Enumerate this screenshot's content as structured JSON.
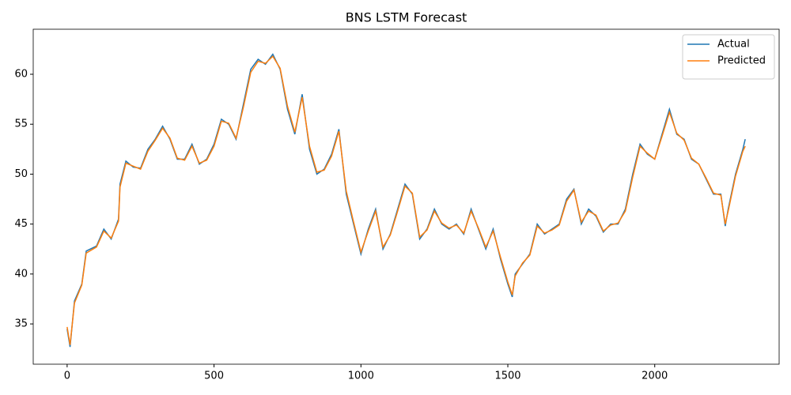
{
  "chart_data": {
    "type": "line",
    "title": "BNS LSTM Forecast",
    "x": [
      0,
      10,
      25,
      50,
      65,
      100,
      125,
      150,
      175,
      180,
      200,
      225,
      250,
      275,
      300,
      325,
      350,
      375,
      400,
      425,
      450,
      475,
      500,
      525,
      550,
      575,
      600,
      625,
      650,
      675,
      700,
      725,
      750,
      775,
      800,
      825,
      850,
      875,
      900,
      925,
      950,
      975,
      1000,
      1025,
      1050,
      1075,
      1100,
      1125,
      1150,
      1175,
      1200,
      1225,
      1250,
      1275,
      1300,
      1325,
      1350,
      1375,
      1400,
      1425,
      1450,
      1475,
      1500,
      1515,
      1525,
      1550,
      1575,
      1600,
      1625,
      1650,
      1675,
      1700,
      1725,
      1750,
      1775,
      1800,
      1825,
      1850,
      1875,
      1900,
      1925,
      1950,
      1975,
      2000,
      2025,
      2050,
      2075,
      2100,
      2125,
      2150,
      2175,
      2200,
      2225,
      2240,
      2250,
      2275,
      2300,
      2308
    ],
    "series": [
      {
        "name": "Actual",
        "color": "#1f77b4",
        "values": [
          34.5,
          32.7,
          37.3,
          39,
          42.3,
          42.8,
          44.5,
          43.5,
          45.5,
          49,
          51.3,
          50.7,
          50.6,
          52.5,
          53.5,
          54.8,
          53.5,
          51.5,
          51.5,
          53,
          51,
          51.5,
          53,
          55.5,
          55,
          53.5,
          57,
          60.5,
          61.5,
          61,
          62,
          60.5,
          56.5,
          54,
          58,
          52.5,
          50,
          50.5,
          52,
          54.5,
          48,
          45,
          42,
          44.5,
          46.5,
          42.5,
          44,
          46.5,
          49,
          48,
          43.5,
          44.5,
          46.5,
          45,
          44.5,
          45,
          44,
          46.5,
          44.5,
          42.5,
          44.5,
          41.5,
          39,
          37.7,
          40,
          41,
          42,
          45,
          44,
          44.5,
          45,
          47.5,
          48.5,
          45,
          46.5,
          45.8,
          44.2,
          45,
          45,
          46.5,
          50,
          53,
          52,
          51.5,
          54,
          56.5,
          54,
          53.5,
          51.5,
          51,
          49.5,
          48,
          48,
          44.8,
          46.5,
          50,
          52.5,
          53.5
        ]
      },
      {
        "name": "Predicted",
        "color": "#ff7f0e",
        "values": [
          34.7,
          32.9,
          37.1,
          38.9,
          42.1,
          42.7,
          44.3,
          43.6,
          45.3,
          48.7,
          51.1,
          50.8,
          50.5,
          52.3,
          53.4,
          54.6,
          53.6,
          51.6,
          51.4,
          52.8,
          51.1,
          51.4,
          52.8,
          55.3,
          55.1,
          53.6,
          56.7,
          60.2,
          61.3,
          61.1,
          61.8,
          60.6,
          56.8,
          54.2,
          57.7,
          52.8,
          50.2,
          50.4,
          51.8,
          54.3,
          48.3,
          45.2,
          42.2,
          44.3,
          46.3,
          42.7,
          43.9,
          46.3,
          48.8,
          48.1,
          43.7,
          44.4,
          46.3,
          45.1,
          44.6,
          44.9,
          44.1,
          46.3,
          44.6,
          42.7,
          44.3,
          41.7,
          39.2,
          37.9,
          39.8,
          41.1,
          41.9,
          44.8,
          44.1,
          44.4,
          44.9,
          47.3,
          48.4,
          45.2,
          46.3,
          45.9,
          44.3,
          44.9,
          45.1,
          46.3,
          49.7,
          52.8,
          52.1,
          51.5,
          53.8,
          56.2,
          54.1,
          53.4,
          51.6,
          51,
          49.6,
          48.1,
          47.9,
          45,
          46.3,
          49.8,
          52.3,
          52.8
        ]
      }
    ],
    "xlim": [
      -115.4,
      2423.4
    ],
    "xticks": [
      0,
      500,
      1000,
      1500,
      2000
    ],
    "ylim": [
      30.97,
      64.51
    ],
    "yticks": [
      35,
      40,
      45,
      50,
      55,
      60
    ],
    "legend": "upper right"
  }
}
